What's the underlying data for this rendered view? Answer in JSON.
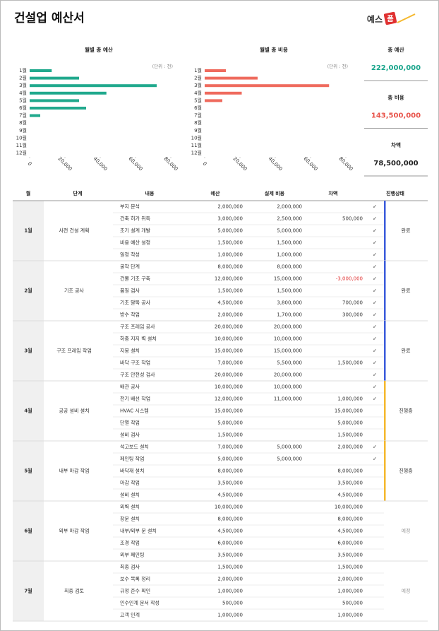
{
  "header": {
    "title": "건설업 예산서",
    "logo_main": "예스",
    "logo_mark": "폼"
  },
  "chart_data": [
    {
      "type": "bar",
      "orientation": "horizontal",
      "title": "월별 총 예산",
      "unit": "(단위 : 천)",
      "categories": [
        "1월",
        "2월",
        "3월",
        "4월",
        "5월",
        "6월",
        "7월",
        "8월",
        "9월",
        "10월",
        "11월",
        "12월"
      ],
      "values": [
        12500,
        28000,
        72000,
        43500,
        28000,
        32000,
        6000,
        null,
        null,
        null,
        null,
        null
      ],
      "color": "#21a98d",
      "xlim": [
        0,
        80000
      ],
      "xticks": [
        0,
        {
          "value": 20000,
          "label": "20,000"
        },
        {
          "value": 40000,
          "label": "40,000"
        },
        {
          "value": 60000,
          "label": "60,000"
        },
        {
          "value": 80000,
          "label": "80,000"
        }
      ]
    },
    {
      "type": "bar",
      "orientation": "horizontal",
      "title": "월별 총 비용",
      "unit": "(단위 : 천)",
      "categories": [
        "1월",
        "2월",
        "3월",
        "4월",
        "5월",
        "6월",
        "7월",
        "8월",
        "9월",
        "10월",
        "11월",
        "12월"
      ],
      "values": [
        12000,
        30000,
        70500,
        21000,
        10000,
        null,
        null,
        null,
        null,
        null,
        null,
        null
      ],
      "color": "#ef6b5e",
      "xlim": [
        0,
        80000
      ],
      "xticks": [
        0,
        {
          "value": 20000,
          "label": "20,000"
        },
        {
          "value": 40000,
          "label": "40,000"
        },
        {
          "value": 60000,
          "label": "60,000"
        },
        {
          "value": 80000,
          "label": "80,000"
        }
      ]
    }
  ],
  "summary": [
    {
      "label": "총 예산",
      "value": "222,000,000",
      "color": "#1aa58c"
    },
    {
      "label": "총 비용",
      "value": "143,500,000",
      "color": "#e8534a"
    },
    {
      "label": "차액",
      "value": "78,500,000",
      "color": "#222222"
    }
  ],
  "table": {
    "columns": [
      "월",
      "단계",
      "내용",
      "예산",
      "실제 비용",
      "차액",
      "진행상태"
    ],
    "check_symbol": "✓",
    "groups": [
      {
        "month": "1월",
        "stage": "사전 건설 계획",
        "status": "완료",
        "status_color": "#3b5bdb",
        "items": [
          {
            "task": "부지 분석",
            "budget": "2,000,000",
            "actual": "2,000,000",
            "checked": true
          },
          {
            "task": "건축 허가 취득",
            "budget": "3,000,000",
            "actual": "2,500,000",
            "diff": "500,000",
            "checked": true
          },
          {
            "task": "초기 설계 개발",
            "budget": "5,000,000",
            "actual": "5,000,000",
            "checked": true
          },
          {
            "task": "비용 예산 설정",
            "budget": "1,500,000",
            "actual": "1,500,000",
            "checked": true
          },
          {
            "task": "일정 작성",
            "budget": "1,000,000",
            "actual": "1,000,000",
            "checked": true
          }
        ]
      },
      {
        "month": "2월",
        "stage": "기초 공사",
        "status": "완료",
        "status_color": "#3b5bdb",
        "items": [
          {
            "task": "굴착 단계",
            "budget": "8,000,000",
            "actual": "8,000,000",
            "checked": true
          },
          {
            "task": "건물 기초 구축",
            "budget": "12,000,000",
            "actual": "15,000,000",
            "diff": "-3,000,000",
            "diff_color": "#e03131",
            "checked": true
          },
          {
            "task": "품질 검사",
            "budget": "1,500,000",
            "actual": "1,500,000",
            "checked": true
          },
          {
            "task": "기초 말뚝 공사",
            "budget": "4,500,000",
            "actual": "3,800,000",
            "diff": "700,000",
            "checked": true
          },
          {
            "task": "방수 작업",
            "budget": "2,000,000",
            "actual": "1,700,000",
            "diff": "300,000",
            "checked": true
          }
        ]
      },
      {
        "month": "3월",
        "stage": "구조 프레임 작업",
        "status": "완료",
        "status_color": "#3b5bdb",
        "items": [
          {
            "task": "구조 프레임 공사",
            "budget": "20,000,000",
            "actual": "20,000,000",
            "checked": true
          },
          {
            "task": "하중 지지 벽 설치",
            "budget": "10,000,000",
            "actual": "10,000,000",
            "checked": true
          },
          {
            "task": "지붕 설치",
            "budget": "15,000,000",
            "actual": "15,000,000",
            "checked": true
          },
          {
            "task": "바닥 구조 작업",
            "budget": "7,000,000",
            "actual": "5,500,000",
            "diff": "1,500,000",
            "checked": true
          },
          {
            "task": "구조 안전성 검사",
            "budget": "20,000,000",
            "actual": "20,000,000",
            "checked": true
          }
        ]
      },
      {
        "month": "4월",
        "stage": "공공 설비 설치",
        "status": "진행중",
        "status_color": "#f5b82e",
        "items": [
          {
            "task": "배관 공사",
            "budget": "10,000,000",
            "actual": "10,000,000",
            "checked": true
          },
          {
            "task": "전기 배선 작업",
            "budget": "12,000,000",
            "actual": "11,000,000",
            "diff": "1,000,000",
            "checked": true
          },
          {
            "task": "HVAC 시스템",
            "budget": "15,000,000",
            "diff": "15,000,000",
            "checked": false
          },
          {
            "task": "단열 작업",
            "budget": "5,000,000",
            "diff": "5,000,000",
            "checked": false
          },
          {
            "task": "설비 검사",
            "budget": "1,500,000",
            "diff": "1,500,000",
            "checked": false
          }
        ]
      },
      {
        "month": "5월",
        "stage": "내부 마감 작업",
        "status": "진행중",
        "status_color": "#f5b82e",
        "items": [
          {
            "task": "석고보드 설치",
            "budget": "7,000,000",
            "actual": "5,000,000",
            "diff": "2,000,000",
            "checked": true
          },
          {
            "task": "페인팅 작업",
            "budget": "5,000,000",
            "actual": "5,000,000",
            "checked": true
          },
          {
            "task": "바닥재 설치",
            "budget": "8,000,000",
            "diff": "8,000,000",
            "checked": false
          },
          {
            "task": "마감 작업",
            "budget": "3,500,000",
            "diff": "3,500,000",
            "checked": false
          },
          {
            "task": "설비 설치",
            "budget": "4,500,000",
            "diff": "4,500,000",
            "checked": false
          }
        ]
      },
      {
        "month": "6월",
        "stage": "외부 마감 작업",
        "status": "예정",
        "items": [
          {
            "task": "외벽 설치",
            "budget": "10,000,000",
            "diff": "10,000,000",
            "checked": false
          },
          {
            "task": "창문 설치",
            "budget": "8,000,000",
            "diff": "8,000,000",
            "checked": false
          },
          {
            "task": "내부/외부 문 설치",
            "budget": "4,500,000",
            "diff": "4,500,000",
            "checked": false
          },
          {
            "task": "조경 작업",
            "budget": "6,000,000",
            "diff": "6,000,000",
            "checked": false
          },
          {
            "task": "외부 페인팅",
            "budget": "3,500,000",
            "diff": "3,500,000",
            "checked": false
          }
        ]
      },
      {
        "month": "7월",
        "stage": "최종 검토",
        "status": "예정",
        "items": [
          {
            "task": "최종 검사",
            "budget": "1,500,000",
            "diff": "1,500,000",
            "checked": false
          },
          {
            "task": "보수 목록 정리",
            "budget": "2,000,000",
            "diff": "2,000,000",
            "checked": false
          },
          {
            "task": "규정 준수 확인",
            "budget": "1,000,000",
            "diff": "1,000,000",
            "checked": false
          },
          {
            "task": "인수인계 문서 작성",
            "budget": "500,000",
            "diff": "500,000",
            "checked": false
          },
          {
            "task": "고객 인계",
            "budget": "1,000,000",
            "diff": "1,000,000",
            "checked": false
          }
        ]
      }
    ]
  }
}
